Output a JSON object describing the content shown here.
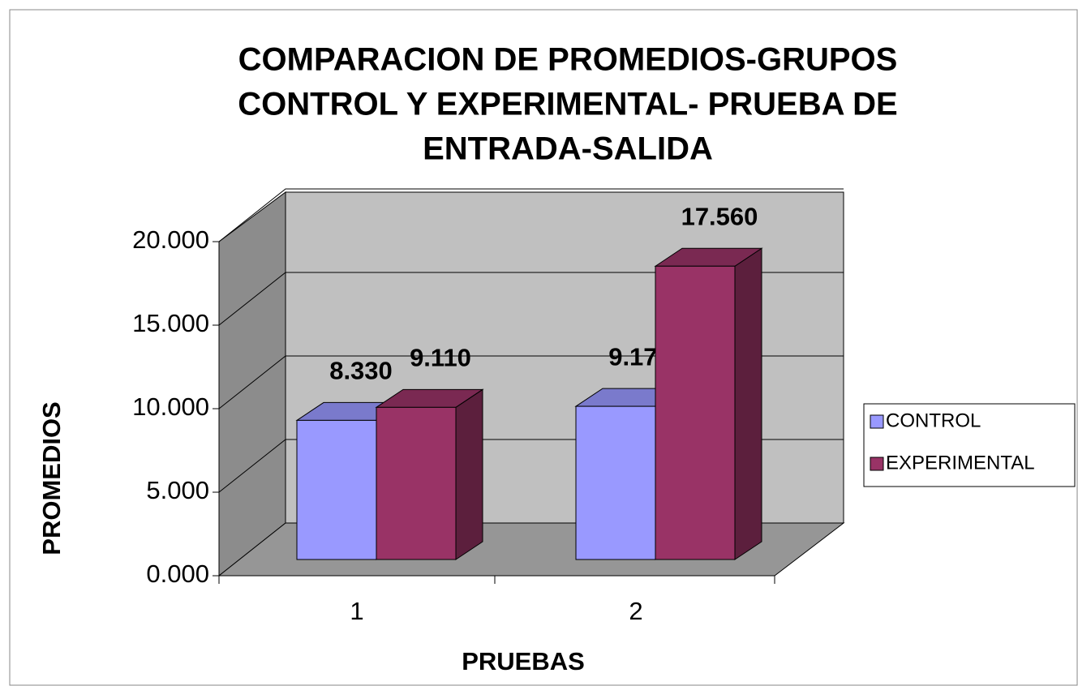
{
  "chart_data": {
    "type": "bar3d",
    "title": [
      "COMPARACION DE PROMEDIOS-GRUPOS",
      "CONTROL Y EXPERIMENTAL- PRUEBA DE",
      "ENTRADA-SALIDA"
    ],
    "xlabel": "PRUEBAS",
    "ylabel": "PROMEDIOS",
    "categories": [
      "1",
      "2"
    ],
    "series": [
      {
        "name": "CONTROL",
        "color": "#9999ff",
        "values": [
          8.33,
          9.17
        ],
        "value_labels": [
          "8.330",
          "9.170"
        ]
      },
      {
        "name": "EXPERIMENTAL",
        "color": "#993366",
        "values": [
          9.11,
          17.56
        ],
        "value_labels": [
          "9.110",
          "17.560"
        ]
      }
    ],
    "ylim": [
      0,
      20
    ],
    "yticks": [
      {
        "value": 0,
        "label": "0.000"
      },
      {
        "value": 5,
        "label": "5.000"
      },
      {
        "value": 10,
        "label": "10.000"
      },
      {
        "value": 15,
        "label": "15.000"
      },
      {
        "value": 20,
        "label": "20.000"
      }
    ],
    "grid": true,
    "legend": "right"
  }
}
